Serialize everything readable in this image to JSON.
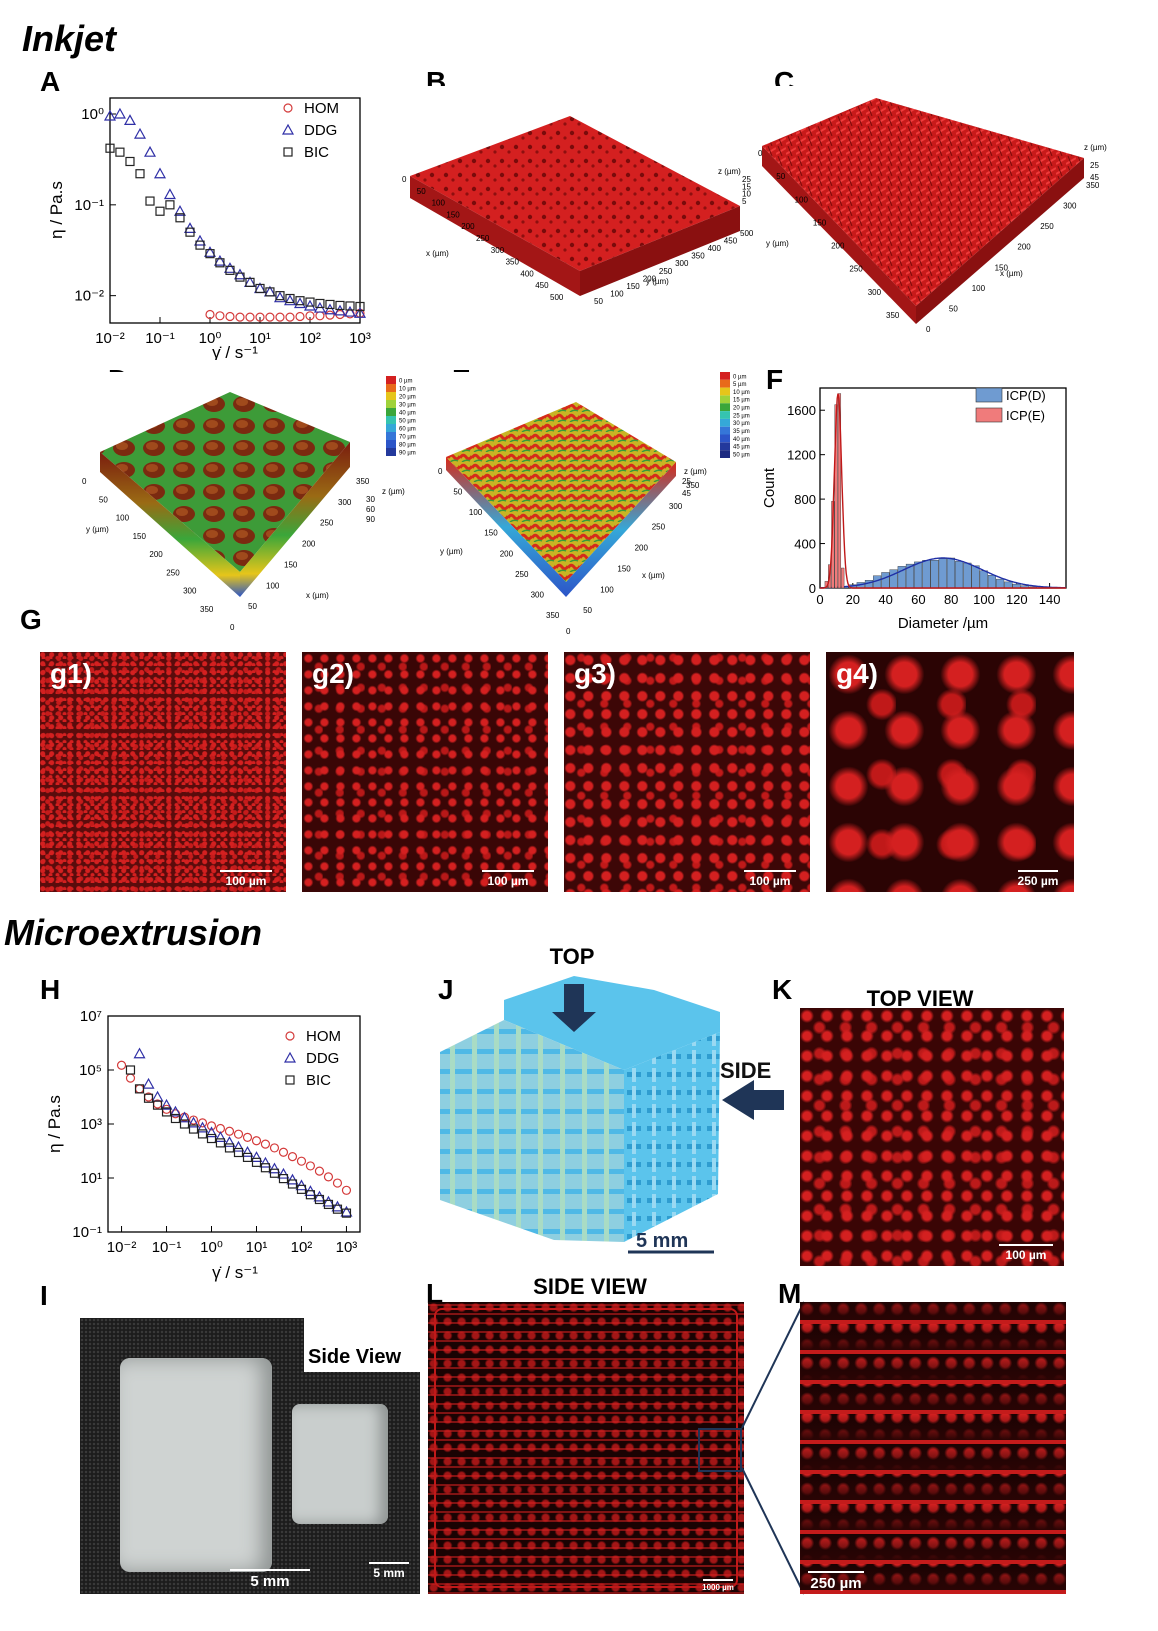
{
  "sections": {
    "inkjet": "Inkjet",
    "microextrusion": "Microextrusion"
  },
  "panels": {
    "A": "A",
    "B": "B",
    "C": "C",
    "D": "D",
    "E": "E",
    "F": "F",
    "G": "G",
    "H": "H",
    "I": "I",
    "J": "J",
    "K": "K",
    "L": "L",
    "M": "M"
  },
  "colors": {
    "hydrogel_red": "#d42020",
    "dark_background": "#1a0505",
    "cube_blue": "#5bc4ec",
    "arrow_navy": "#1f3557",
    "hom": "#d43b3b",
    "ddg": "#2f2fa6",
    "bic": "#222222",
    "icp_d": "#6f9bd1",
    "icp_e": "#f07b7b"
  },
  "chart_data": [
    {
      "id": "A",
      "type": "scatter",
      "xscale": "log",
      "yscale": "log",
      "xlabel": "γ̇ / s⁻¹",
      "ylabel": "η / Pa.s",
      "xlim": [
        0.01,
        1000
      ],
      "ylim": [
        0.005,
        1.5
      ],
      "xticks": [
        "10⁻²",
        "10⁻¹",
        "10⁰",
        "10¹",
        "10²",
        "10³"
      ],
      "yticks": [
        "10⁻²",
        "10⁻¹",
        "10⁰"
      ],
      "legend_position": "top-right",
      "series": [
        {
          "name": "HOM",
          "marker": "circle",
          "x": [
            1,
            1.58,
            2.51,
            3.98,
            6.31,
            10,
            15.8,
            25.1,
            39.8,
            63.1,
            100,
            158,
            251,
            398,
            631,
            1000
          ],
          "y": [
            0.0062,
            0.006,
            0.0059,
            0.0058,
            0.0058,
            0.0058,
            0.0058,
            0.0058,
            0.0058,
            0.0059,
            0.006,
            0.006,
            0.0061,
            0.0062,
            0.0063,
            0.0064
          ]
        },
        {
          "name": "DDG",
          "marker": "triangle",
          "x": [
            0.01,
            0.0158,
            0.0251,
            0.0398,
            0.0631,
            0.1,
            0.158,
            0.251,
            0.398,
            0.631,
            1,
            1.58,
            2.51,
            3.98,
            6.31,
            10,
            15.8,
            25.1,
            39.8,
            63.1,
            100,
            158,
            251,
            398,
            631,
            1000
          ],
          "y": [
            0.95,
            1.0,
            0.85,
            0.6,
            0.38,
            0.22,
            0.13,
            0.085,
            0.055,
            0.04,
            0.03,
            0.024,
            0.02,
            0.017,
            0.014,
            0.012,
            0.011,
            0.0095,
            0.0088,
            0.0082,
            0.0077,
            0.0073,
            0.007,
            0.0068,
            0.0066,
            0.0064
          ]
        },
        {
          "name": "BIC",
          "marker": "square",
          "x": [
            0.01,
            0.0158,
            0.0251,
            0.0398,
            0.0631,
            0.1,
            0.158,
            0.251,
            0.398,
            0.631,
            1,
            1.58,
            2.51,
            3.98,
            6.31,
            10,
            15.8,
            25.1,
            39.8,
            63.1,
            100,
            158,
            251,
            398,
            631,
            1000
          ],
          "y": [
            0.42,
            0.38,
            0.3,
            0.22,
            0.11,
            0.085,
            0.1,
            0.072,
            0.05,
            0.036,
            0.029,
            0.023,
            0.019,
            0.016,
            0.014,
            0.012,
            0.011,
            0.01,
            0.0093,
            0.0088,
            0.0085,
            0.0082,
            0.008,
            0.0078,
            0.0077,
            0.0076
          ]
        }
      ]
    },
    {
      "id": "F",
      "type": "bar",
      "xlabel": "Diameter /µm",
      "ylabel": "Count",
      "xlim": [
        0,
        150
      ],
      "ylim": [
        0,
        1800
      ],
      "xticks": [
        0,
        20,
        40,
        60,
        80,
        100,
        120,
        140
      ],
      "yticks": [
        0,
        400,
        800,
        1200,
        1600
      ],
      "legend_position": "top-right",
      "series": [
        {
          "name": "ICP(D)",
          "bin_centers": [
            10,
            15,
            20,
            25,
            30,
            35,
            40,
            45,
            50,
            55,
            60,
            65,
            70,
            75,
            80,
            85,
            90,
            95,
            100,
            105,
            110,
            115,
            120,
            125,
            130
          ],
          "values": [
            5,
            15,
            30,
            50,
            70,
            110,
            140,
            165,
            195,
            215,
            235,
            250,
            250,
            265,
            270,
            240,
            225,
            200,
            155,
            115,
            80,
            55,
            35,
            20,
            10
          ],
          "fit_peak": 270,
          "fit_center": 75,
          "fit_width": 24
        },
        {
          "name": "ICP(E)",
          "bin_centers": [
            4,
            6,
            8,
            10,
            12,
            14
          ],
          "values": [
            60,
            210,
            780,
            1650,
            1750,
            180
          ],
          "fit_peak": 1750,
          "fit_center": 11,
          "fit_width": 2.2
        }
      ]
    },
    {
      "id": "H",
      "type": "scatter",
      "xscale": "log",
      "yscale": "log",
      "xlabel": "γ̇ / s⁻¹",
      "ylabel": "η / Pa.s",
      "xlim": [
        0.005,
        2000
      ],
      "ylim": [
        0.1,
        10000000
      ],
      "xticks": [
        "10⁻²",
        "10⁻¹",
        "10⁰",
        "10¹",
        "10²",
        "10³"
      ],
      "yticks": [
        "10⁻¹",
        "10¹",
        "10³",
        "10⁵",
        "10⁷"
      ],
      "legend_position": "top-right",
      "series": [
        {
          "name": "HOM",
          "marker": "circle",
          "x": [
            0.01,
            0.0158,
            0.0251,
            0.0398,
            0.0631,
            0.1,
            0.158,
            0.251,
            0.398,
            0.631,
            1,
            1.58,
            2.51,
            3.98,
            6.31,
            10,
            15.8,
            25.1,
            39.8,
            63.1,
            100,
            158,
            251,
            398,
            631,
            1000
          ],
          "y": [
            150000,
            50000,
            20000,
            10000,
            5500,
            3500,
            2400,
            1800,
            1400,
            1100,
            850,
            680,
            540,
            420,
            320,
            240,
            180,
            130,
            90,
            62,
            42,
            28,
            18,
            11,
            6.5,
            3.5
          ]
        },
        {
          "name": "DDG",
          "marker": "triangle",
          "x": [
            0.0251,
            0.0398,
            0.0631,
            0.1,
            0.158,
            0.251,
            0.398,
            0.631,
            1,
            1.58,
            2.51,
            3.98,
            6.31,
            10,
            15.8,
            25.1,
            39.8,
            63.1,
            100,
            158,
            251,
            398,
            631,
            1000
          ],
          "y": [
            400000,
            30000,
            10000,
            5000,
            2800,
            1700,
            1100,
            720,
            480,
            320,
            210,
            140,
            90,
            58,
            36,
            22,
            14,
            8.5,
            5.2,
            3.2,
            2.0,
            1.3,
            0.85,
            0.55
          ]
        },
        {
          "name": "BIC",
          "marker": "square",
          "x": [
            0.0158,
            0.0251,
            0.0398,
            0.0631,
            0.1,
            0.158,
            0.251,
            0.398,
            0.631,
            1,
            1.58,
            2.51,
            3.98,
            6.31,
            10,
            15.8,
            25.1,
            39.8,
            63.1,
            100,
            158,
            251,
            398,
            631,
            1000
          ],
          "y": [
            100000,
            20000,
            9000,
            5000,
            2800,
            1600,
            1000,
            650,
            430,
            290,
            200,
            130,
            88,
            58,
            38,
            24,
            15,
            9.5,
            6,
            3.8,
            2.4,
            1.6,
            1.05,
            0.7,
            0.5
          ]
        }
      ]
    }
  ],
  "panel_B": {
    "axis_x": "x (µm)",
    "axis_y": "y (µm)",
    "axis_z": "z (µm)",
    "x_ticks": [
      "0",
      "50",
      "100",
      "150",
      "200",
      "250",
      "300",
      "350",
      "400",
      "450",
      "500"
    ],
    "y_ticks": [
      "50",
      "100",
      "150",
      "200",
      "250",
      "300",
      "350",
      "400",
      "450",
      "500"
    ],
    "z_ticks": [
      "25",
      "15",
      "10",
      "5"
    ]
  },
  "panel_C": {
    "axis_x": "x (µm)",
    "axis_y": "y (µm)",
    "axis_z": "z (µm)",
    "y_ticks": [
      "0",
      "50",
      "100",
      "150",
      "200",
      "250",
      "300",
      "350"
    ],
    "x_ticks": [
      "0",
      "50",
      "100",
      "150",
      "200",
      "250",
      "300",
      "350"
    ],
    "z_ticks": [
      "25",
      "45"
    ]
  },
  "panel_D": {
    "axis_x": "x (µm)",
    "axis_y": "y (µm)",
    "axis_z": "z (µm)",
    "y_ticks": [
      "0",
      "50",
      "100",
      "150",
      "200",
      "250",
      "300",
      "350"
    ],
    "x_ticks": [
      "0",
      "50",
      "100",
      "150",
      "200",
      "250",
      "300",
      "350"
    ],
    "z_ticks": [
      "30",
      "60",
      "90"
    ],
    "colorbar": [
      "0 µm",
      "10 µm",
      "20 µm",
      "30 µm",
      "40 µm",
      "50 µm",
      "60 µm",
      "70 µm",
      "80 µm",
      "90 µm"
    ]
  },
  "panel_E": {
    "axis_x": "x (µm)",
    "axis_y": "y (µm)",
    "axis_z": "z (µm)",
    "y_ticks": [
      "0",
      "50",
      "100",
      "150",
      "200",
      "250",
      "300",
      "350"
    ],
    "x_ticks": [
      "0",
      "50",
      "100",
      "150",
      "200",
      "250",
      "300",
      "350"
    ],
    "z_ticks": [
      "25",
      "45"
    ],
    "colorbar": [
      "0 µm",
      "5 µm",
      "10 µm",
      "15 µm",
      "20 µm",
      "25 µm",
      "30 µm",
      "35 µm",
      "40 µm",
      "45 µm",
      "50 µm"
    ]
  },
  "panel_G": {
    "images": [
      {
        "label": "g1)",
        "scale": "100 µm"
      },
      {
        "label": "g2)",
        "scale": "100 µm"
      },
      {
        "label": "g3)",
        "scale": "100 µm"
      },
      {
        "label": "g4)",
        "scale": "250 µm"
      }
    ]
  },
  "panel_I": {
    "side_view": "Side View",
    "scale_large": "5 mm",
    "scale_small": "5 mm"
  },
  "panel_J": {
    "top": "TOP",
    "side": "SIDE",
    "scale": "5 mm"
  },
  "panel_K": {
    "title": "TOP VIEW",
    "scale": "100 µm"
  },
  "panel_L": {
    "title": "SIDE VIEW",
    "scale": "1000 µm"
  },
  "panel_M": {
    "scale": "250 µm"
  }
}
